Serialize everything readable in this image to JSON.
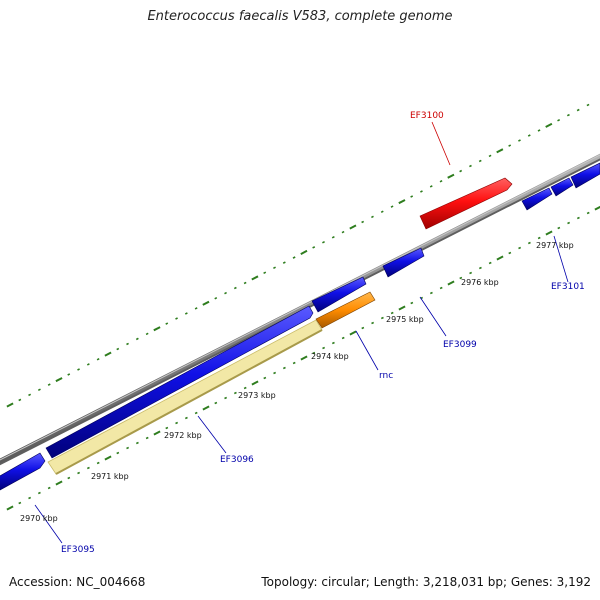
{
  "title": "Enterococcus faecalis V583, complete genome",
  "footer": {
    "accession": "Accession: NC_004668",
    "summary": "Topology: circular; Length: 3,218,031 bp; Genes: 3,192"
  },
  "colors": {
    "backbone": "#8c8c8c",
    "tick": "#2e7d1e",
    "cds": "#1010e0",
    "rrna": "#ff1a1a",
    "rnc": "#ff8c00",
    "highlight": "#f2e8a6",
    "gene_label": "#0000aa",
    "rrna_label": "#cc0000"
  },
  "scale_labels": [
    {
      "kbp": 2970,
      "label": "2970 kbp"
    },
    {
      "kbp": 2971,
      "label": "2971 kbp"
    },
    {
      "kbp": 2972,
      "label": "2972 kbp"
    },
    {
      "kbp": 2973,
      "label": "2973 kbp"
    },
    {
      "kbp": 2974,
      "label": "2974 kbp"
    },
    {
      "kbp": 2975,
      "label": "2975 kbp"
    },
    {
      "kbp": 2976,
      "label": "2976 kbp"
    },
    {
      "kbp": 2977,
      "label": "2977 kbp"
    }
  ],
  "gene_labels": [
    "EF3095",
    "EF3096",
    "rnc",
    "EF3099",
    "EF3100",
    "EF3101"
  ]
}
